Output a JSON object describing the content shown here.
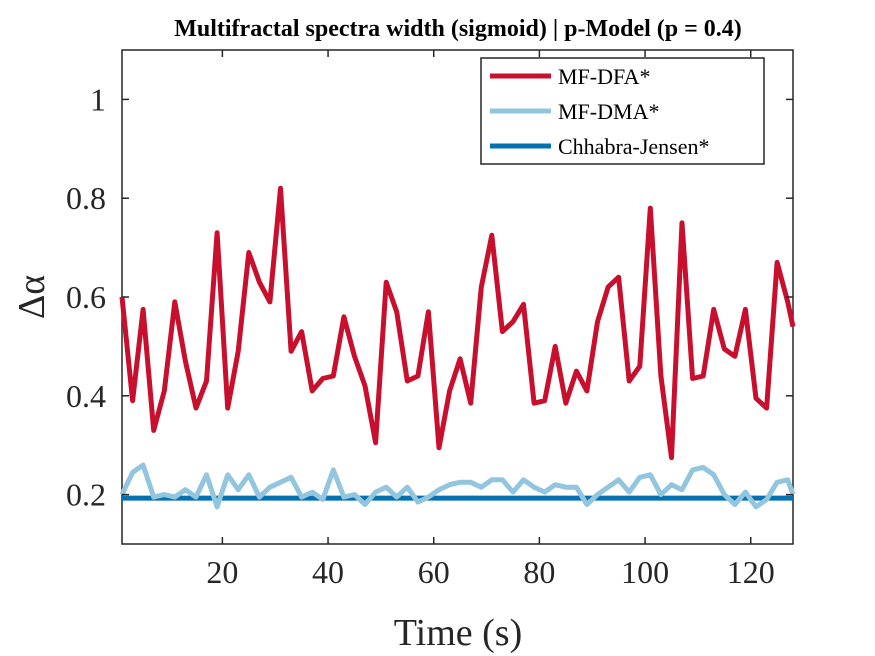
{
  "chart_data": {
    "type": "line",
    "title": "Multifractal spectra width (sigmoid) | p-Model (p = 0.4)",
    "xlabel": "Time (s)",
    "ylabel": "Δα",
    "xlim": [
      1,
      128
    ],
    "ylim": [
      0.1,
      1.1
    ],
    "xticks": [
      20,
      40,
      60,
      80,
      100,
      120
    ],
    "yticks": [
      0.2,
      0.4,
      0.6,
      0.8,
      1
    ],
    "ytick_labels": [
      "0.2",
      "0.4",
      "0.6",
      "0.8",
      "1"
    ],
    "legend_position": "top-right",
    "grid": false,
    "series": [
      {
        "name": "MF-DFA*",
        "color": "#c8102e",
        "x": [
          1,
          3,
          5,
          7,
          9,
          11,
          13,
          15,
          17,
          19,
          21,
          23,
          25,
          27,
          29,
          31,
          33,
          35,
          37,
          39,
          41,
          43,
          45,
          47,
          49,
          51,
          53,
          55,
          57,
          59,
          61,
          63,
          65,
          67,
          69,
          71,
          73,
          75,
          77,
          79,
          81,
          83,
          85,
          87,
          89,
          91,
          93,
          95,
          97,
          99,
          101,
          103,
          105,
          107,
          109,
          111,
          113,
          115,
          117,
          119,
          121,
          123,
          125,
          127,
          128
        ],
        "y": [
          0.6,
          0.39,
          0.575,
          0.33,
          0.41,
          0.59,
          0.47,
          0.375,
          0.43,
          0.73,
          0.375,
          0.49,
          0.69,
          0.63,
          0.59,
          0.82,
          0.49,
          0.53,
          0.41,
          0.435,
          0.44,
          0.56,
          0.48,
          0.42,
          0.305,
          0.63,
          0.57,
          0.43,
          0.44,
          0.57,
          0.295,
          0.41,
          0.475,
          0.385,
          0.62,
          0.725,
          0.53,
          0.55,
          0.585,
          0.385,
          0.39,
          0.5,
          0.385,
          0.45,
          0.41,
          0.55,
          0.62,
          0.64,
          0.43,
          0.46,
          0.78,
          0.44,
          0.275,
          0.75,
          0.435,
          0.44,
          0.575,
          0.495,
          0.48,
          0.575,
          0.395,
          0.375,
          0.67,
          0.59,
          0.54
        ]
      },
      {
        "name": "MF-DMA*",
        "color": "#92c5de",
        "x": [
          1,
          3,
          5,
          7,
          9,
          11,
          13,
          15,
          17,
          19,
          21,
          23,
          25,
          27,
          29,
          31,
          33,
          35,
          37,
          39,
          41,
          43,
          45,
          47,
          49,
          51,
          53,
          55,
          57,
          59,
          61,
          63,
          65,
          67,
          69,
          71,
          73,
          75,
          77,
          79,
          81,
          83,
          85,
          87,
          89,
          91,
          93,
          95,
          97,
          99,
          101,
          103,
          105,
          107,
          109,
          111,
          113,
          115,
          117,
          119,
          121,
          123,
          125,
          127,
          128
        ],
        "y": [
          0.2,
          0.245,
          0.26,
          0.195,
          0.2,
          0.195,
          0.21,
          0.195,
          0.24,
          0.175,
          0.24,
          0.21,
          0.24,
          0.195,
          0.215,
          0.225,
          0.235,
          0.195,
          0.205,
          0.19,
          0.25,
          0.195,
          0.2,
          0.18,
          0.205,
          0.215,
          0.195,
          0.215,
          0.185,
          0.195,
          0.21,
          0.22,
          0.225,
          0.225,
          0.215,
          0.23,
          0.23,
          0.205,
          0.23,
          0.215,
          0.205,
          0.22,
          0.215,
          0.215,
          0.18,
          0.2,
          0.215,
          0.23,
          0.205,
          0.235,
          0.24,
          0.2,
          0.22,
          0.21,
          0.25,
          0.255,
          0.24,
          0.2,
          0.18,
          0.205,
          0.175,
          0.19,
          0.225,
          0.23,
          0.2
        ]
      },
      {
        "name": "Chhabra-Jensen*",
        "color": "#0571b0",
        "x": [
          1,
          128
        ],
        "y": [
          0.193,
          0.193
        ]
      }
    ]
  }
}
